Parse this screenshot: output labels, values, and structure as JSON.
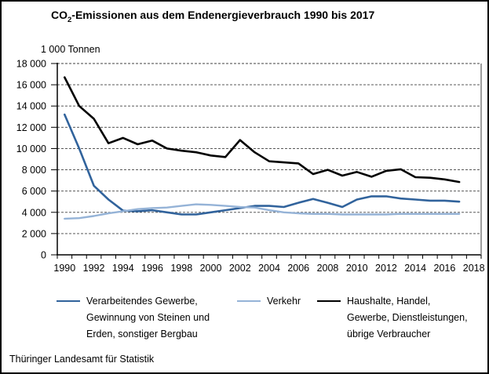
{
  "title": {
    "prefix": "CO",
    "sub": "2",
    "suffix": "-Emissionen aus dem Endenergieverbrauch 1990 bis 2017"
  },
  "unit_label": "1 000 Tonnen",
  "footer": "Thüringer Landesamt für Statistik",
  "colors": {
    "industry": "#31639C",
    "traffic": "#95B3D7",
    "households": "#000000",
    "gridline": "#404040",
    "axis": "#000000",
    "plot_right_border": "#7F7F7F"
  },
  "chart_data": {
    "type": "line",
    "x": [
      1990,
      1991,
      1992,
      1993,
      1994,
      1995,
      1996,
      1997,
      1998,
      1999,
      2000,
      2001,
      2002,
      2003,
      2004,
      2005,
      2006,
      2007,
      2008,
      2009,
      2010,
      2011,
      2012,
      2013,
      2014,
      2015,
      2016,
      2017
    ],
    "x_axis": {
      "tick_labels": [
        "1990",
        "1992",
        "1994",
        "1996",
        "1998",
        "2000",
        "2002",
        "2004",
        "2006",
        "2008",
        "2010",
        "2012",
        "2014",
        "2016",
        "2018"
      ],
      "label_step": 2,
      "end_year": 2018
    },
    "y_axis": {
      "min": 0,
      "max": 18000,
      "step": 2000,
      "tick_labels": [
        "0",
        "2 000",
        "4 000",
        "6 000",
        "8 000",
        "10 000",
        "12 000",
        "14 000",
        "16 000",
        "18 000"
      ],
      "unit": "1 000 Tonnen"
    },
    "grid": true,
    "legend_position": "bottom",
    "series": [
      {
        "name": "Verarbeitendes Gewerbe, Gewinnung von Steinen und Erden, sonstiger Bergbau",
        "color_key": "industry",
        "values": [
          13200,
          10000,
          6500,
          5200,
          4150,
          4100,
          4200,
          4000,
          3800,
          3800,
          4000,
          4200,
          4400,
          4600,
          4600,
          4500,
          4900,
          5250,
          4900,
          4500,
          5200,
          5500,
          5500,
          5300,
          5200,
          5100,
          5100,
          5000
        ]
      },
      {
        "name": "Verkehr",
        "color_key": "traffic",
        "values": [
          3400,
          3450,
          3650,
          3900,
          4100,
          4300,
          4400,
          4450,
          4600,
          4750,
          4700,
          4600,
          4500,
          4450,
          4200,
          4000,
          3900,
          3850,
          3850,
          3800,
          3800,
          3800,
          3800,
          3850,
          3850,
          3850,
          3850,
          3850
        ]
      },
      {
        "name": "Haushalte, Handel, Gewerbe, Dienstleistungen, übrige Verbraucher",
        "color_key": "households",
        "values": [
          16700,
          14000,
          12800,
          10500,
          11000,
          10400,
          10750,
          10000,
          9800,
          9650,
          9350,
          9200,
          10800,
          9650,
          8800,
          8700,
          8600,
          7600,
          8000,
          7450,
          7800,
          7350,
          7900,
          8050,
          7300,
          7250,
          7100,
          6850
        ]
      }
    ],
    "legend": [
      {
        "label": "Verarbeitendes Gewerbe,\nGewinnung von Steinen und\nErden, sonstiger Bergbau",
        "color_key": "industry"
      },
      {
        "label": "Verkehr",
        "color_key": "traffic"
      },
      {
        "label": "Haushalte, Handel,\nGewerbe, Dienstleistungen,\nübrige Verbraucher",
        "color_key": "households"
      }
    ]
  }
}
